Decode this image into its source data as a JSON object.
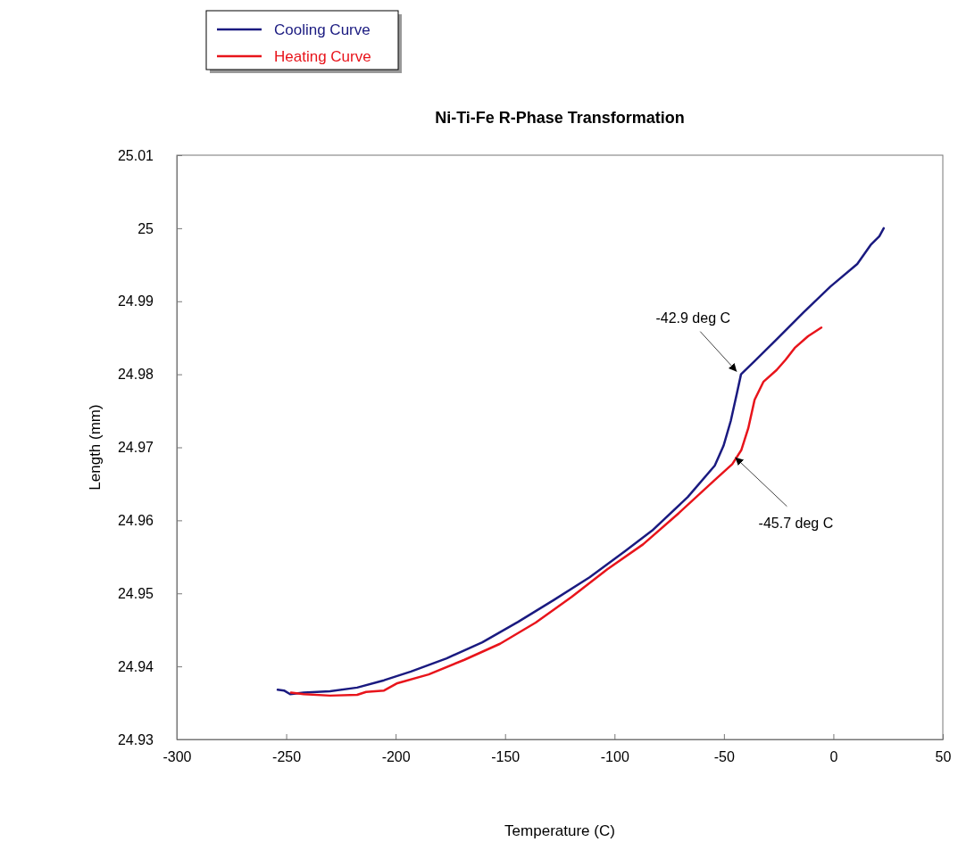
{
  "chart_data": {
    "type": "line",
    "title": "Ni-Ti-Fe R-Phase Transformation",
    "xlabel": "Temperature (C)",
    "ylabel": "Length (mm)",
    "xlim": [
      -300,
      50
    ],
    "xticks": [
      -300,
      -250,
      -200,
      -150,
      -100,
      -50,
      0,
      50
    ],
    "ylim": [
      24.93,
      25.01
    ],
    "yticks": [
      24.93,
      24.94,
      24.95,
      24.96,
      24.97,
      24.98,
      24.99,
      {
        "value": 25,
        "label": "25"
      },
      25.01
    ],
    "grid": false,
    "legend": "top left",
    "marker": "none",
    "line_style": "solid",
    "series": [
      {
        "name": "Cooling Curve",
        "color": "#1a1a80",
        "x": [
          -253.9,
          -251,
          -248.2,
          -242,
          -230,
          -217.6,
          -205.3,
          -193,
          -176.7,
          -160.4,
          -144,
          -127.7,
          -111.4,
          -95.1,
          -82.8,
          -66.5,
          -54.2,
          -50.2,
          -46.9,
          -44.0,
          -42.2,
          -36,
          -25.9,
          -13.6,
          -1.4,
          10.9,
          17,
          21,
          23
        ],
        "values": [
          24.9368,
          24.9367,
          24.9362,
          24.9364,
          24.9366,
          24.9371,
          24.9381,
          24.9393,
          24.9411,
          24.9433,
          24.9461,
          24.9491,
          24.9522,
          24.9558,
          24.9586,
          24.9632,
          24.9675,
          24.9702,
          24.9736,
          24.9775,
          24.98,
          24.9818,
          24.9848,
          24.9885,
          24.992,
          24.9951,
          24.9977,
          24.9989,
          25.0
        ]
      },
      {
        "name": "Heating Curve",
        "color": "#e8141b",
        "x": [
          -247.8,
          -242,
          -230,
          -217.6,
          -213.5,
          -205.3,
          -199.2,
          -184.9,
          -168.6,
          -152.3,
          -136,
          -119.6,
          -103.3,
          -87,
          -70.6,
          -54.3,
          -46.2,
          -42.1,
          -38.9,
          -36.0,
          -31.9,
          -25.9,
          -21.8,
          -17.7,
          -11.6,
          -5.5
        ],
        "values": [
          24.9364,
          24.9362,
          24.936,
          24.9361,
          24.9365,
          24.9367,
          24.9377,
          24.9389,
          24.9409,
          24.9431,
          24.946,
          24.9495,
          24.9533,
          24.9567,
          24.961,
          24.9655,
          24.9677,
          24.9696,
          24.9726,
          24.9765,
          24.979,
          24.9806,
          24.982,
          24.9836,
          24.9852,
          24.9864
        ]
      }
    ],
    "annotations": [
      {
        "text": "-42.9 deg C",
        "x": -42.9,
        "y": 24.98
      },
      {
        "text": "-45.7 deg C",
        "x": -45.7,
        "y": 24.969
      }
    ]
  }
}
